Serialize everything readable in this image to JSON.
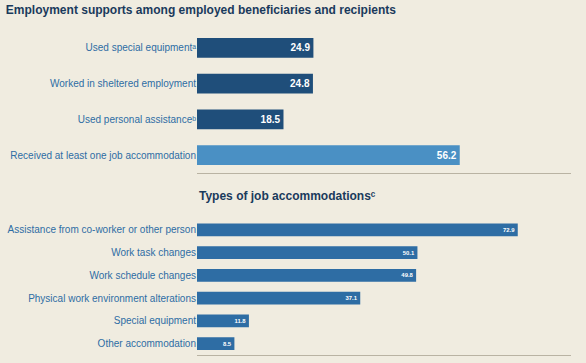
{
  "chart_data": [
    {
      "type": "bar",
      "orientation": "horizontal",
      "title": "Employment supports among employed beneficiaries and recipients",
      "categories": [
        "Used special equipmentᵃ",
        "Worked in sheltered employment",
        "Used personal assistanceᵇ",
        "Received at least one job accommodation"
      ],
      "values": [
        24.9,
        24.8,
        18.5,
        56.2
      ],
      "colors": [
        "#1f4e7a",
        "#1f4e7a",
        "#1f4e7a",
        "#4a90c4"
      ],
      "xlim": [
        0,
        80
      ],
      "tick_labels": "y",
      "data_labels": true,
      "grid": false
    },
    {
      "type": "bar",
      "orientation": "horizontal",
      "title": "Types of job accommodationsᶜ",
      "categories": [
        "Assistance from co-worker or other person",
        "Work task changes",
        "Work schedule changes",
        "Physical work environment alterations",
        "Special equipment",
        "Other accommodation"
      ],
      "values": [
        72.9,
        50.1,
        49.8,
        37.1,
        11.8,
        8.5
      ],
      "colors": [
        "#2e6da4",
        "#2e6da4",
        "#2e6da4",
        "#2e6da4",
        "#2e6da4",
        "#2e6da4"
      ],
      "xlim": [
        0,
        85
      ],
      "tick_labels": "y",
      "data_labels": true,
      "grid": false
    }
  ]
}
